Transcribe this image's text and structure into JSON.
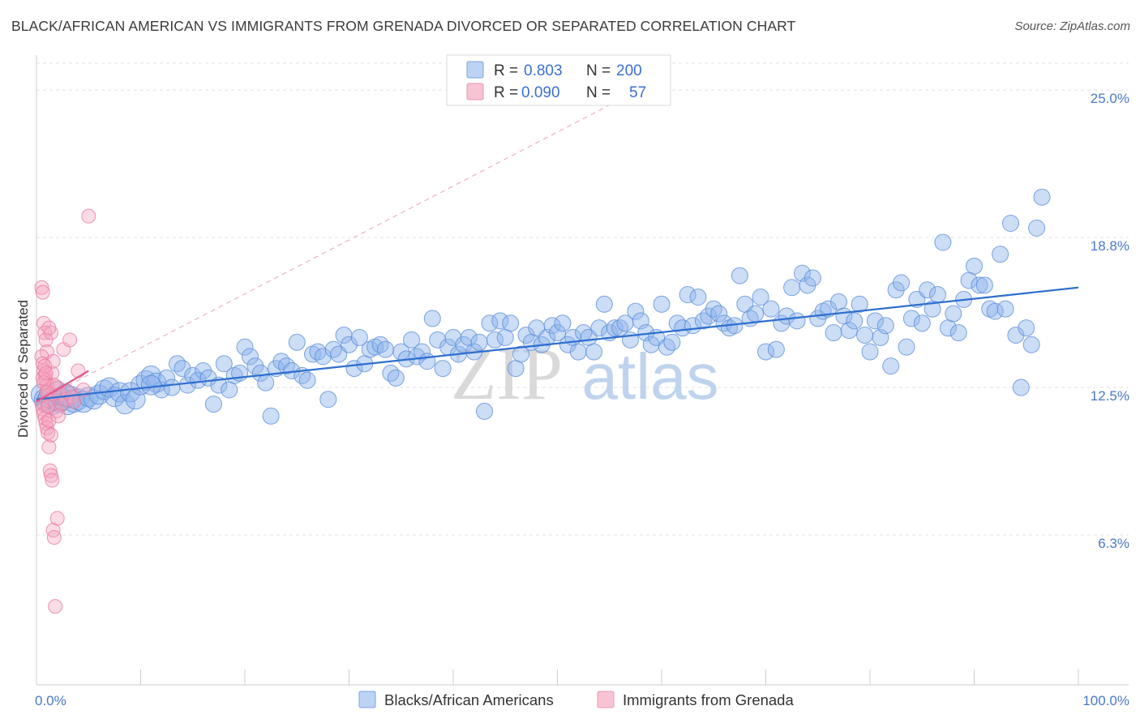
{
  "chart_data": {
    "type": "scatter",
    "title": "BLACK/AFRICAN AMERICAN VS IMMIGRANTS FROM GRENADA DIVORCED OR SEPARATED CORRELATION CHART",
    "source": "Source: ZipAtlas.com",
    "watermark": {
      "part1": "ZIP",
      "part2": "atlas"
    },
    "ylabel": "Divorced or Separated",
    "xlim": [
      0,
      100
    ],
    "ylim": [
      0,
      26.4
    ],
    "x_tick_labels": [
      "0.0%",
      "100.0%"
    ],
    "y_ticks": [
      {
        "value": 25.0,
        "label": "25.0%"
      },
      {
        "value": 18.8,
        "label": "18.8%"
      },
      {
        "value": 12.5,
        "label": "12.5%"
      },
      {
        "value": 6.3,
        "label": "6.3%"
      }
    ],
    "legend": {
      "r_label": "R =",
      "n_label": "N =",
      "entries": [
        {
          "r": "0.803",
          "n": "200"
        },
        {
          "r": "0.090",
          "n": "57"
        }
      ]
    },
    "series": [
      {
        "name": "Blacks/African Americans",
        "color": "#8db4ec",
        "stroke": "#5b8fd9",
        "trend_color": "#2d6fcf",
        "trend": {
          "x0": 0,
          "y0": 12.0,
          "x1": 100,
          "y1": 16.7
        },
        "points": [
          [
            0.5,
            12.2
          ],
          [
            0.8,
            12.0
          ],
          [
            1.0,
            11.9
          ],
          [
            1.2,
            12.1
          ],
          [
            1.5,
            11.8
          ],
          [
            1.8,
            12.0
          ],
          [
            2.0,
            12.3
          ],
          [
            2.2,
            11.9
          ],
          [
            2.5,
            12.0
          ],
          [
            2.8,
            12.2
          ],
          [
            3.0,
            11.8
          ],
          [
            3.3,
            12.1
          ],
          [
            3.6,
            11.9
          ],
          [
            4.0,
            12.0
          ],
          [
            4.5,
            11.9
          ],
          [
            5.0,
            12.1
          ],
          [
            5.5,
            12.0
          ],
          [
            6.0,
            12.2
          ],
          [
            6.5,
            12.4
          ],
          [
            7.0,
            12.5
          ],
          [
            7.5,
            12.1
          ],
          [
            8.0,
            12.3
          ],
          [
            8.5,
            11.8
          ],
          [
            9.0,
            12.3
          ],
          [
            9.5,
            12.0
          ],
          [
            10.0,
            12.6
          ],
          [
            10.5,
            12.8
          ],
          [
            11.0,
            13.0
          ],
          [
            11.5,
            12.7
          ],
          [
            12.0,
            12.4
          ],
          [
            12.5,
            12.9
          ],
          [
            13.0,
            12.5
          ],
          [
            13.5,
            13.5
          ],
          [
            14.0,
            13.3
          ],
          [
            14.5,
            12.6
          ],
          [
            15.0,
            13.0
          ],
          [
            15.5,
            12.8
          ],
          [
            16.0,
            13.2
          ],
          [
            16.5,
            12.9
          ],
          [
            17.0,
            11.8
          ],
          [
            17.5,
            12.6
          ],
          [
            18.0,
            13.5
          ],
          [
            18.5,
            12.4
          ],
          [
            19.0,
            13.0
          ],
          [
            19.5,
            13.1
          ],
          [
            20.0,
            14.2
          ],
          [
            20.5,
            13.8
          ],
          [
            21.0,
            13.4
          ],
          [
            21.5,
            13.1
          ],
          [
            22.0,
            12.7
          ],
          [
            22.5,
            11.3
          ],
          [
            23.0,
            13.3
          ],
          [
            23.5,
            13.6
          ],
          [
            24.0,
            13.4
          ],
          [
            24.5,
            13.2
          ],
          [
            25.0,
            14.4
          ],
          [
            25.5,
            13.0
          ],
          [
            26.0,
            12.8
          ],
          [
            26.5,
            13.9
          ],
          [
            27.0,
            14.0
          ],
          [
            27.5,
            13.8
          ],
          [
            28.0,
            12.0
          ],
          [
            28.5,
            14.1
          ],
          [
            29.0,
            13.9
          ],
          [
            29.5,
            14.7
          ],
          [
            30.0,
            14.3
          ],
          [
            30.5,
            13.3
          ],
          [
            31.0,
            14.6
          ],
          [
            31.5,
            13.5
          ],
          [
            32.0,
            14.1
          ],
          [
            32.5,
            14.2
          ],
          [
            33.0,
            14.3
          ],
          [
            33.5,
            14.1
          ],
          [
            34.0,
            13.1
          ],
          [
            34.5,
            12.9
          ],
          [
            35.0,
            14.0
          ],
          [
            35.5,
            13.7
          ],
          [
            36.0,
            14.5
          ],
          [
            36.5,
            13.8
          ],
          [
            37.0,
            14.0
          ],
          [
            37.5,
            13.6
          ],
          [
            38.0,
            15.4
          ],
          [
            38.5,
            14.5
          ],
          [
            39.0,
            13.3
          ],
          [
            39.5,
            14.2
          ],
          [
            40.0,
            14.6
          ],
          [
            40.5,
            13.9
          ],
          [
            41.0,
            14.3
          ],
          [
            41.5,
            14.6
          ],
          [
            42.0,
            14.0
          ],
          [
            42.5,
            14.4
          ],
          [
            43.0,
            11.5
          ],
          [
            43.5,
            15.2
          ],
          [
            44.0,
            14.5
          ],
          [
            44.5,
            15.3
          ],
          [
            45.0,
            14.6
          ],
          [
            45.5,
            15.2
          ],
          [
            46.0,
            13.3
          ],
          [
            46.5,
            13.9
          ],
          [
            47.0,
            14.7
          ],
          [
            47.5,
            14.4
          ],
          [
            48.0,
            15.0
          ],
          [
            48.5,
            14.3
          ],
          [
            49.0,
            14.6
          ],
          [
            49.5,
            15.1
          ],
          [
            50.0,
            14.8
          ],
          [
            50.5,
            15.2
          ],
          [
            51.0,
            14.3
          ],
          [
            51.5,
            14.6
          ],
          [
            52.0,
            14.0
          ],
          [
            52.5,
            14.8
          ],
          [
            53.0,
            14.6
          ],
          [
            53.5,
            14.0
          ],
          [
            54.0,
            15.0
          ],
          [
            54.5,
            16.0
          ],
          [
            55.0,
            14.8
          ],
          [
            55.5,
            15.0
          ],
          [
            56.0,
            15.0
          ],
          [
            56.5,
            15.2
          ],
          [
            57.0,
            14.5
          ],
          [
            57.5,
            15.7
          ],
          [
            58.0,
            15.3
          ],
          [
            58.5,
            14.8
          ],
          [
            59.0,
            14.3
          ],
          [
            59.5,
            14.6
          ],
          [
            60.0,
            16.0
          ],
          [
            60.5,
            14.2
          ],
          [
            61.0,
            14.4
          ],
          [
            61.5,
            15.2
          ],
          [
            62.0,
            15.0
          ],
          [
            62.5,
            16.4
          ],
          [
            63.0,
            15.1
          ],
          [
            63.5,
            16.3
          ],
          [
            64.0,
            15.3
          ],
          [
            64.5,
            15.5
          ],
          [
            65.0,
            15.8
          ],
          [
            65.5,
            15.6
          ],
          [
            66.0,
            15.2
          ],
          [
            66.5,
            15.0
          ],
          [
            67.0,
            15.1
          ],
          [
            67.5,
            17.2
          ],
          [
            68.0,
            16.0
          ],
          [
            68.5,
            15.4
          ],
          [
            69.0,
            15.6
          ],
          [
            69.5,
            16.3
          ],
          [
            70.0,
            14.0
          ],
          [
            70.5,
            15.8
          ],
          [
            71.0,
            14.1
          ],
          [
            71.5,
            15.2
          ],
          [
            72.0,
            15.5
          ],
          [
            72.5,
            16.7
          ],
          [
            73.0,
            15.3
          ],
          [
            73.5,
            17.3
          ],
          [
            74.0,
            16.8
          ],
          [
            74.5,
            17.1
          ],
          [
            75.0,
            15.4
          ],
          [
            75.5,
            15.7
          ],
          [
            76.0,
            15.8
          ],
          [
            76.5,
            14.8
          ],
          [
            77.0,
            16.1
          ],
          [
            77.5,
            15.5
          ],
          [
            78.0,
            14.9
          ],
          [
            78.5,
            15.3
          ],
          [
            79.0,
            16.0
          ],
          [
            79.5,
            14.7
          ],
          [
            80.0,
            14.0
          ],
          [
            80.5,
            15.3
          ],
          [
            81.0,
            14.6
          ],
          [
            81.5,
            15.1
          ],
          [
            82.0,
            13.4
          ],
          [
            82.5,
            16.6
          ],
          [
            83.0,
            16.9
          ],
          [
            83.5,
            14.2
          ],
          [
            84.0,
            15.4
          ],
          [
            84.5,
            16.2
          ],
          [
            85.0,
            15.2
          ],
          [
            85.5,
            16.6
          ],
          [
            86.0,
            15.8
          ],
          [
            86.5,
            16.4
          ],
          [
            87.0,
            18.6
          ],
          [
            87.5,
            15.0
          ],
          [
            88.0,
            15.6
          ],
          [
            88.5,
            14.8
          ],
          [
            89.0,
            16.2
          ],
          [
            89.5,
            17.0
          ],
          [
            90.0,
            17.6
          ],
          [
            90.5,
            16.8
          ],
          [
            91.0,
            16.8
          ],
          [
            91.5,
            15.8
          ],
          [
            92.0,
            15.7
          ],
          [
            92.5,
            18.1
          ],
          [
            93.0,
            15.8
          ],
          [
            93.5,
            19.4
          ],
          [
            94.0,
            14.7
          ],
          [
            94.5,
            12.5
          ],
          [
            95.0,
            15.0
          ],
          [
            95.5,
            14.3
          ],
          [
            96.0,
            19.2
          ],
          [
            96.5,
            20.5
          ],
          [
            11.0,
            12.6
          ]
        ]
      },
      {
        "name": "Immigrants from Grenada",
        "color": "#f4a6bf",
        "stroke": "#e87a9f",
        "trend_color": "#e05a8a",
        "trend": {
          "x0": 0,
          "y0": 11.9,
          "x1": 5,
          "y1": 13.2
        },
        "trend_extended": {
          "x0": 0,
          "y0": 11.9,
          "x1": 60,
          "y1": 25.5
        },
        "points": [
          [
            0.5,
            16.7
          ],
          [
            0.6,
            16.5
          ],
          [
            0.7,
            15.2
          ],
          [
            0.8,
            14.8
          ],
          [
            0.9,
            14.5
          ],
          [
            1.0,
            14.0
          ],
          [
            0.5,
            13.8
          ],
          [
            0.6,
            13.5
          ],
          [
            0.7,
            13.2
          ],
          [
            0.8,
            13.0
          ],
          [
            0.9,
            12.8
          ],
          [
            1.0,
            12.6
          ],
          [
            1.1,
            12.4
          ],
          [
            1.2,
            12.2
          ],
          [
            1.3,
            12.0
          ],
          [
            0.5,
            11.8
          ],
          [
            0.6,
            11.6
          ],
          [
            0.7,
            11.4
          ],
          [
            0.8,
            11.2
          ],
          [
            0.9,
            11.0
          ],
          [
            1.0,
            10.8
          ],
          [
            1.1,
            10.6
          ],
          [
            1.2,
            10.0
          ],
          [
            1.3,
            9.0
          ],
          [
            1.4,
            8.8
          ],
          [
            1.5,
            8.6
          ],
          [
            1.6,
            6.5
          ],
          [
            1.7,
            6.2
          ],
          [
            1.8,
            3.3
          ],
          [
            2.0,
            12.5
          ],
          [
            2.2,
            12.2
          ],
          [
            2.4,
            11.8
          ],
          [
            2.6,
            14.1
          ],
          [
            2.8,
            12.0
          ],
          [
            3.0,
            12.3
          ],
          [
            3.2,
            14.5
          ],
          [
            3.4,
            12.1
          ],
          [
            3.6,
            11.9
          ],
          [
            4.0,
            13.2
          ],
          [
            4.5,
            12.4
          ],
          [
            5.0,
            19.7
          ],
          [
            1.5,
            13.1
          ],
          [
            1.6,
            13.6
          ],
          [
            1.4,
            14.8
          ],
          [
            1.7,
            12.6
          ],
          [
            1.9,
            11.5
          ],
          [
            2.1,
            11.3
          ],
          [
            1.2,
            15.0
          ],
          [
            0.6,
            12.9
          ],
          [
            0.7,
            12.7
          ],
          [
            0.8,
            13.4
          ],
          [
            0.9,
            13.1
          ],
          [
            1.0,
            12.3
          ],
          [
            1.1,
            11.7
          ],
          [
            1.2,
            11.1
          ],
          [
            1.4,
            10.5
          ],
          [
            2.0,
            7.0
          ]
        ]
      }
    ]
  }
}
